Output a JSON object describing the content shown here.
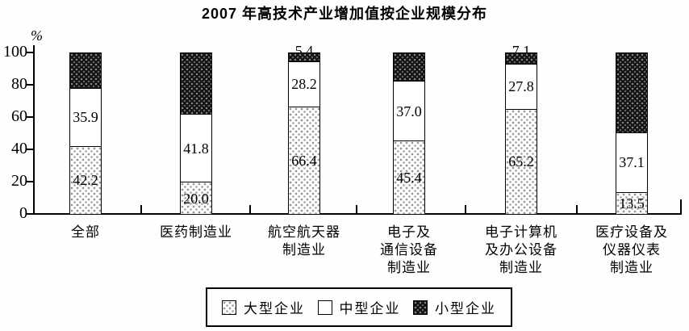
{
  "title": "2007 年高技术产业增加值按企业规模分布",
  "y_axis": {
    "unit": "%",
    "ticks": [
      0,
      20,
      40,
      60,
      80,
      100
    ],
    "max": 100
  },
  "legend": [
    {
      "label": "大型企业",
      "pattern": "dots-light"
    },
    {
      "label": "中型企业",
      "pattern": "plain-white"
    },
    {
      "label": "小型企业",
      "pattern": "dots-dark"
    }
  ],
  "chart_data": {
    "type": "bar",
    "stacked": true,
    "title": "2007 年高技术产业增加值按企业规模分布",
    "ylabel": "%",
    "ylim": [
      0,
      100
    ],
    "grid": false,
    "legend_position": "bottom",
    "categories": [
      "全部",
      "医药制造业",
      "航空航天器制造业",
      "电子及通信设备制造业",
      "电子计算机及办公设备制造业",
      "医疗设备及仪器仪表制造业"
    ],
    "category_lines": [
      [
        "全部"
      ],
      [
        "医药制造业"
      ],
      [
        "航空航天器",
        "制造业"
      ],
      [
        "电子及",
        "通信设备",
        "制造业"
      ],
      [
        "电子计算机",
        "及办公设备",
        "制造业"
      ],
      [
        "医疗设备及",
        "仪器仪表",
        "制造业"
      ]
    ],
    "series": [
      {
        "name": "大型企业",
        "pattern": "dots-light",
        "values": [
          42.2,
          20.0,
          66.4,
          45.4,
          65.2,
          13.5
        ],
        "labels": [
          "42.2",
          "20.0",
          "66.4",
          "45.4",
          "65.2",
          "13.5"
        ]
      },
      {
        "name": "中型企业",
        "pattern": "plain-white",
        "values": [
          35.9,
          41.8,
          28.2,
          37.0,
          27.8,
          37.1
        ],
        "labels": [
          "35.9",
          "41.8",
          "28.2",
          "37.0",
          "27.8",
          "37.1"
        ]
      },
      {
        "name": "小型企业",
        "pattern": "dots-dark",
        "values": [
          21.9,
          38.2,
          5.4,
          17.6,
          7.1,
          49.4
        ],
        "labels": [
          "",
          "",
          "5.4",
          "",
          "7.1",
          ""
        ]
      }
    ]
  }
}
